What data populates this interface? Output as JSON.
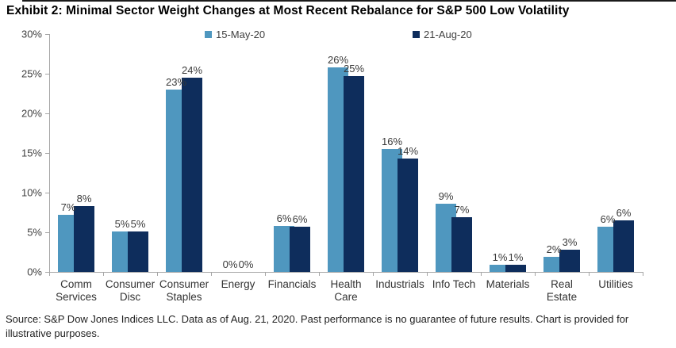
{
  "title": "Exhibit 2: Minimal Sector Weight Changes at Most Recent Rebalance for S&P 500 Low Volatility",
  "source_note": "Source: S&P Dow Jones Indices LLC. Data as of Aug. 21, 2020. Past performance is no guarantee of future results. Chart is provided for illustrative purposes.",
  "legend": {
    "items": [
      {
        "label": "15-May-20",
        "color": "#4f97bf"
      },
      {
        "label": "21-Aug-20",
        "color": "#0e2d5c"
      }
    ]
  },
  "chart_data": {
    "type": "bar",
    "title": "Exhibit 2: Minimal Sector Weight Changes at Most Recent Rebalance for S&P 500 Low Volatility",
    "categories": [
      "Comm\nServices",
      "Consumer\nDisc",
      "Consumer\nStaples",
      "Energy",
      "Financials",
      "Health\nCare",
      "Industrials",
      "Info Tech",
      "Materials",
      "Real\nEstate",
      "Utilities"
    ],
    "series": [
      {
        "name": "15-May-20",
        "color": "#4f97bf",
        "values": [
          7.2,
          5.1,
          23.0,
          0.0,
          5.8,
          25.8,
          15.5,
          8.6,
          0.9,
          1.9,
          5.7
        ],
        "labels": [
          "7%",
          "5%",
          "23%",
          "0%",
          "6%",
          "26%",
          "16%",
          "9%",
          "1%",
          "2%",
          "6%"
        ]
      },
      {
        "name": "21-Aug-20",
        "color": "#0e2d5c",
        "values": [
          8.3,
          5.1,
          24.5,
          0.0,
          5.7,
          24.7,
          14.3,
          6.9,
          0.9,
          2.8,
          6.5
        ],
        "labels": [
          "8%",
          "5%",
          "24%",
          "0%",
          "6%",
          "25%",
          "14%",
          "7%",
          "1%",
          "3%",
          "6%"
        ]
      }
    ],
    "xlabel": "",
    "ylabel": "",
    "ylim": [
      0,
      30
    ],
    "ytick_step": 5,
    "yticks": [
      "0%",
      "5%",
      "10%",
      "15%",
      "20%",
      "25%",
      "30%"
    ],
    "grid": false,
    "legend_position": "top-center",
    "value_labels": true
  }
}
